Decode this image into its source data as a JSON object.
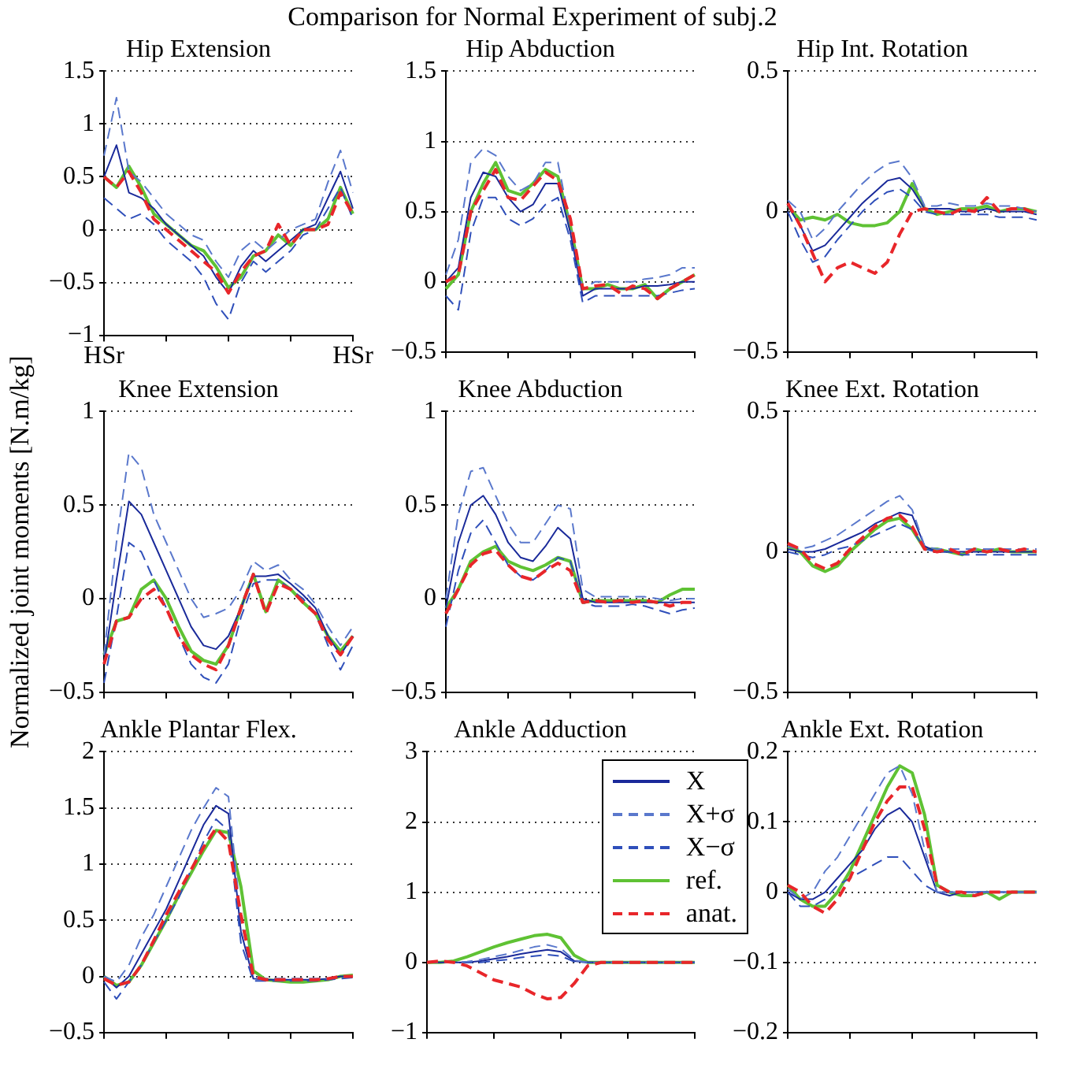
{
  "chart_data": [
    {
      "type": "line",
      "title": "Hip Extension",
      "annotations": [
        "Comparison for Normal Experiment of subj.2"
      ],
      "categories": [
        "HSr",
        null,
        null,
        null,
        null,
        null,
        null,
        null,
        null,
        null,
        null,
        null,
        null,
        null,
        null,
        null,
        null,
        null,
        null,
        null,
        "HSr"
      ],
      "ylim": [
        -1,
        1.5
      ],
      "yticks": [
        -1,
        -0.5,
        0,
        0.5,
        1,
        1.5
      ],
      "grid": "y",
      "series": [
        {
          "color": "#1a2a9a",
          "line_style": "solid",
          "values": [
            0.5,
            0.8,
            0.35,
            0.3,
            0.2,
            0.05,
            -0.05,
            -0.15,
            -0.25,
            -0.45,
            -0.6,
            -0.35,
            -0.2,
            -0.3,
            -0.2,
            -0.1,
            0,
            0.05,
            0.3,
            0.55,
            0.2
          ]
        },
        {
          "color": "#5a78cc",
          "line_style": "dashed",
          "values": [
            0.7,
            1.25,
            0.55,
            0.45,
            0.3,
            0.15,
            0.05,
            -0.05,
            -0.1,
            -0.3,
            -0.45,
            -0.2,
            -0.1,
            -0.2,
            -0.1,
            0,
            0.05,
            0.1,
            0.45,
            0.75,
            0.35
          ]
        },
        {
          "color": "#2f4fba",
          "line_style": "dashed",
          "values": [
            0.3,
            0.2,
            0.1,
            0.15,
            0.05,
            -0.1,
            -0.2,
            -0.3,
            -0.45,
            -0.7,
            -0.85,
            -0.5,
            -0.3,
            -0.4,
            -0.3,
            -0.2,
            -0.05,
            0,
            0.2,
            0.4,
            0.1
          ]
        },
        {
          "color": "#5fc234",
          "line_style": "solid",
          "values": [
            0.5,
            0.4,
            0.6,
            0.4,
            0.15,
            0.05,
            -0.05,
            -0.15,
            -0.2,
            -0.35,
            -0.55,
            -0.45,
            -0.25,
            -0.2,
            -0.05,
            -0.15,
            0,
            0,
            0.1,
            0.4,
            0.15
          ]
        },
        {
          "color": "#e8262a",
          "line_style": "dashed",
          "values": [
            0.5,
            0.4,
            0.55,
            0.35,
            0.1,
            0,
            -0.1,
            -0.2,
            -0.3,
            -0.4,
            -0.6,
            -0.4,
            -0.25,
            -0.2,
            0.05,
            -0.15,
            0,
            0,
            0.05,
            0.35,
            0.15
          ]
        }
      ]
    },
    {
      "type": "line",
      "title": "Hip Abduction",
      "categories": [
        null,
        null,
        null,
        null,
        null,
        null,
        null,
        null,
        null,
        null,
        null,
        null,
        null,
        null,
        null,
        null,
        null,
        null,
        null,
        null,
        null
      ],
      "ylim": [
        -0.5,
        1.5
      ],
      "yticks": [
        -0.5,
        0,
        0.5,
        1,
        1.5
      ],
      "grid": "y",
      "tick_labels": "y",
      "series": [
        {
          "color": "#1a2a9a",
          "line_style": "solid",
          "values": [
            0,
            0.1,
            0.6,
            0.78,
            0.75,
            0.6,
            0.5,
            0.55,
            0.7,
            0.7,
            0.35,
            -0.1,
            -0.05,
            -0.05,
            -0.05,
            -0.05,
            -0.03,
            -0.03,
            -0.02,
            0,
            0
          ]
        },
        {
          "color": "#5a78cc",
          "line_style": "dashed",
          "values": [
            0.05,
            0.3,
            0.85,
            0.95,
            0.9,
            0.75,
            0.65,
            0.7,
            0.85,
            0.85,
            0.4,
            -0.05,
            0,
            0,
            0,
            0,
            0.02,
            0.03,
            0.05,
            0.1,
            0.1
          ]
        },
        {
          "color": "#2f4fba",
          "line_style": "dashed",
          "values": [
            -0.1,
            -0.2,
            0.35,
            0.6,
            0.6,
            0.45,
            0.4,
            0.45,
            0.55,
            0.6,
            0.3,
            -0.15,
            -0.1,
            -0.1,
            -0.1,
            -0.1,
            -0.1,
            -0.1,
            -0.08,
            -0.06,
            -0.05
          ]
        },
        {
          "color": "#5fc234",
          "line_style": "solid",
          "values": [
            -0.05,
            0.05,
            0.5,
            0.7,
            0.85,
            0.65,
            0.62,
            0.7,
            0.8,
            0.75,
            0.4,
            -0.05,
            -0.05,
            -0.02,
            -0.05,
            -0.05,
            -0.02,
            -0.12,
            -0.05,
            0,
            0.05
          ]
        },
        {
          "color": "#e8262a",
          "line_style": "dashed",
          "values": [
            0,
            0.05,
            0.5,
            0.65,
            0.8,
            0.6,
            0.58,
            0.68,
            0.78,
            0.72,
            0.45,
            -0.05,
            -0.03,
            -0.02,
            -0.08,
            -0.03,
            -0.05,
            -0.12,
            -0.05,
            0,
            0.05
          ]
        }
      ]
    },
    {
      "type": "line",
      "title": "Hip Int. Rotation",
      "categories": [
        null,
        null,
        null,
        null,
        null,
        null,
        null,
        null,
        null,
        null,
        null,
        null,
        null,
        null,
        null,
        null,
        null,
        null,
        null,
        null,
        null
      ],
      "ylim": [
        -0.5,
        0.5
      ],
      "yticks": [
        -0.5,
        0,
        0.5
      ],
      "grid": "y",
      "tick_labels": "y",
      "series": [
        {
          "color": "#1a2a9a",
          "line_style": "solid",
          "values": [
            0.02,
            -0.05,
            -0.14,
            -0.12,
            -0.07,
            -0.02,
            0.03,
            0.07,
            0.11,
            0.12,
            0.08,
            0.01,
            0.01,
            0.01,
            0,
            0,
            0.01,
            0,
            0,
            0,
            -0.01
          ]
        },
        {
          "color": "#5a78cc",
          "line_style": "dashed",
          "values": [
            0.04,
            0,
            -0.1,
            -0.06,
            0,
            0.05,
            0.1,
            0.14,
            0.17,
            0.18,
            0.12,
            0.02,
            0.02,
            0.03,
            0.02,
            0.02,
            0.03,
            0.02,
            0.02,
            0.01,
            0
          ]
        },
        {
          "color": "#2f4fba",
          "line_style": "dashed",
          "values": [
            0,
            -0.1,
            -0.18,
            -0.16,
            -0.1,
            -0.05,
            0,
            0.04,
            0.07,
            0.08,
            0.05,
            0,
            -0.01,
            -0.01,
            -0.01,
            -0.01,
            -0.01,
            -0.02,
            -0.02,
            -0.02,
            -0.03
          ]
        },
        {
          "color": "#5fc234",
          "line_style": "solid",
          "values": [
            0.02,
            -0.03,
            -0.02,
            -0.03,
            -0.01,
            -0.04,
            -0.05,
            -0.05,
            -0.04,
            0,
            0.1,
            0.01,
            -0.01,
            0,
            0.01,
            0.01,
            0.02,
            0,
            0.01,
            0.01,
            0
          ]
        },
        {
          "color": "#e8262a",
          "line_style": "dashed",
          "values": [
            0.03,
            -0.05,
            -0.15,
            -0.25,
            -0.2,
            -0.18,
            -0.2,
            -0.22,
            -0.18,
            -0.08,
            0,
            0.01,
            0,
            -0.01,
            0.01,
            0,
            0.05,
            0,
            0.01,
            0.01,
            -0.01
          ]
        }
      ]
    },
    {
      "type": "line",
      "title": "Knee Extension",
      "ylabel": "Normalized joint moments [N.m/kg]",
      "categories": [
        null,
        null,
        null,
        null,
        null,
        null,
        null,
        null,
        null,
        null,
        null,
        null,
        null,
        null,
        null,
        null,
        null,
        null,
        null,
        null,
        null
      ],
      "ylim": [
        -0.5,
        1
      ],
      "yticks": [
        -0.5,
        0,
        0.5,
        1
      ],
      "grid": "y",
      "tick_labels": "y",
      "series": [
        {
          "color": "#1a2a9a",
          "line_style": "solid",
          "values": [
            -0.35,
            0.1,
            0.52,
            0.45,
            0.3,
            0.15,
            0,
            -0.15,
            -0.25,
            -0.27,
            -0.2,
            -0.05,
            0.12,
            0.12,
            0.13,
            0.08,
            0.02,
            -0.05,
            -0.2,
            -0.3,
            -0.2
          ]
        },
        {
          "color": "#5a78cc",
          "line_style": "dashed",
          "values": [
            -0.3,
            0.3,
            0.78,
            0.7,
            0.45,
            0.3,
            0.15,
            0,
            -0.1,
            -0.08,
            -0.05,
            0.05,
            0.2,
            0.15,
            0.18,
            0.1,
            0.05,
            -0.03,
            -0.15,
            -0.25,
            -0.15
          ]
        },
        {
          "color": "#2f4fba",
          "line_style": "dashed",
          "values": [
            -0.45,
            -0.1,
            0.3,
            0.25,
            0.1,
            -0.05,
            -0.2,
            -0.35,
            -0.42,
            -0.45,
            -0.35,
            -0.1,
            0.08,
            0.1,
            0.1,
            0.05,
            0,
            -0.08,
            -0.25,
            -0.38,
            -0.25
          ]
        },
        {
          "color": "#5fc234",
          "line_style": "solid",
          "values": [
            -0.3,
            -0.12,
            -0.1,
            0.05,
            0.1,
            0,
            -0.15,
            -0.28,
            -0.33,
            -0.35,
            -0.25,
            -0.05,
            0.13,
            -0.07,
            0.1,
            0.05,
            -0.02,
            -0.08,
            -0.2,
            -0.28,
            -0.2
          ]
        },
        {
          "color": "#e8262a",
          "line_style": "dashed",
          "values": [
            -0.35,
            -0.12,
            -0.1,
            0,
            0.05,
            -0.05,
            -0.2,
            -0.3,
            -0.35,
            -0.38,
            -0.25,
            -0.05,
            0.13,
            -0.08,
            0.08,
            0.05,
            -0.02,
            -0.08,
            -0.22,
            -0.3,
            -0.2
          ]
        }
      ]
    },
    {
      "type": "line",
      "title": "Knee Abduction",
      "categories": [
        null,
        null,
        null,
        null,
        null,
        null,
        null,
        null,
        null,
        null,
        null,
        null,
        null,
        null,
        null,
        null,
        null,
        null,
        null,
        null,
        null
      ],
      "ylim": [
        -0.5,
        1
      ],
      "yticks": [
        -0.5,
        0,
        0.5,
        1
      ],
      "grid": "y",
      "tick_labels": "y",
      "series": [
        {
          "color": "#1a2a9a",
          "line_style": "solid",
          "values": [
            -0.05,
            0.3,
            0.5,
            0.55,
            0.45,
            0.3,
            0.22,
            0.2,
            0.28,
            0.38,
            0.32,
            0,
            -0.02,
            -0.02,
            -0.02,
            -0.02,
            -0.02,
            -0.02,
            -0.02,
            -0.02,
            -0.02
          ]
        },
        {
          "color": "#5a78cc",
          "line_style": "dashed",
          "values": [
            0,
            0.45,
            0.68,
            0.7,
            0.55,
            0.4,
            0.3,
            0.3,
            0.4,
            0.5,
            0.48,
            0.05,
            0.01,
            0.01,
            0.01,
            0.01,
            0.01,
            0,
            -0.01,
            0,
            0
          ]
        },
        {
          "color": "#2f4fba",
          "line_style": "dashed",
          "values": [
            -0.15,
            0.15,
            0.35,
            0.42,
            0.3,
            0.18,
            0.12,
            0.1,
            0.15,
            0.22,
            0.2,
            -0.02,
            -0.04,
            -0.04,
            -0.04,
            -0.03,
            -0.04,
            -0.06,
            -0.08,
            -0.06,
            -0.05
          ]
        },
        {
          "color": "#5fc234",
          "line_style": "solid",
          "values": [
            -0.05,
            0.05,
            0.2,
            0.25,
            0.28,
            0.2,
            0.17,
            0.15,
            0.18,
            0.22,
            0.2,
            -0.02,
            -0.01,
            -0.01,
            -0.01,
            -0.01,
            -0.01,
            -0.02,
            0.02,
            0.05,
            0.05
          ]
        },
        {
          "color": "#e8262a",
          "line_style": "dashed",
          "values": [
            -0.08,
            0.05,
            0.18,
            0.24,
            0.26,
            0.18,
            0.12,
            0.1,
            0.15,
            0.19,
            0.15,
            -0.02,
            -0.01,
            -0.02,
            -0.01,
            -0.02,
            -0.01,
            -0.02,
            -0.04,
            -0.02,
            -0.02
          ]
        }
      ]
    },
    {
      "type": "line",
      "title": "Knee Ext. Rotation",
      "categories": [
        null,
        null,
        null,
        null,
        null,
        null,
        null,
        null,
        null,
        null,
        null,
        null,
        null,
        null,
        null,
        null,
        null,
        null,
        null,
        null,
        null
      ],
      "ylim": [
        -0.5,
        0.5
      ],
      "yticks": [
        -0.5,
        0,
        0.5
      ],
      "grid": "y",
      "tick_labels": "y",
      "series": [
        {
          "color": "#1a2a9a",
          "line_style": "solid",
          "values": [
            0.01,
            0,
            0,
            0.01,
            0.03,
            0.05,
            0.07,
            0.1,
            0.12,
            0.14,
            0.13,
            0.02,
            0,
            0,
            0,
            0,
            0,
            0,
            0,
            0,
            0
          ]
        },
        {
          "color": "#5a78cc",
          "line_style": "dashed",
          "values": [
            0.02,
            0.01,
            0.02,
            0.04,
            0.06,
            0.09,
            0.12,
            0.15,
            0.18,
            0.2,
            0.15,
            0.02,
            0.01,
            0.01,
            0.01,
            0.01,
            0.01,
            0.01,
            0.01,
            0.01,
            0.01
          ]
        },
        {
          "color": "#2f4fba",
          "line_style": "dashed",
          "values": [
            0,
            -0.01,
            -0.02,
            -0.01,
            0.01,
            0.02,
            0.04,
            0.06,
            0.08,
            0.1,
            0.08,
            0.01,
            0,
            0,
            -0.01,
            -0.01,
            -0.01,
            -0.01,
            -0.01,
            -0.01,
            -0.01
          ]
        },
        {
          "color": "#5fc234",
          "line_style": "solid",
          "values": [
            0.02,
            0,
            -0.05,
            -0.07,
            -0.05,
            0,
            0.04,
            0.08,
            0.11,
            0.12,
            0.08,
            0.01,
            0.01,
            0,
            -0.01,
            0.01,
            0,
            0.01,
            0,
            0,
            0
          ]
        },
        {
          "color": "#e8262a",
          "line_style": "dashed",
          "values": [
            0.03,
            0.01,
            -0.04,
            -0.06,
            -0.04,
            0.01,
            0.05,
            0.09,
            0.12,
            0.13,
            0.09,
            0.01,
            0,
            0.01,
            -0.01,
            0.01,
            0,
            0.01,
            0,
            0.01,
            0
          ]
        }
      ]
    },
    {
      "type": "line",
      "title": "Ankle Plantar Flex.",
      "categories": [
        null,
        null,
        null,
        null,
        null,
        null,
        null,
        null,
        null,
        null,
        null,
        null,
        null,
        null,
        null,
        null,
        null,
        null,
        null,
        null,
        null
      ],
      "ylim": [
        -0.5,
        2
      ],
      "yticks": [
        -0.5,
        0,
        0.5,
        1,
        1.5,
        2
      ],
      "grid": "y",
      "tick_labels": "y",
      "series": [
        {
          "color": "#1a2a9a",
          "line_style": "solid",
          "values": [
            0,
            -0.1,
            0,
            0.2,
            0.4,
            0.6,
            0.85,
            1.1,
            1.35,
            1.52,
            1.45,
            0.4,
            -0.02,
            -0.03,
            -0.03,
            -0.03,
            -0.03,
            -0.03,
            -0.02,
            0,
            0
          ]
        },
        {
          "color": "#5a78cc",
          "line_style": "dashed",
          "values": [
            0,
            -0.05,
            0.1,
            0.35,
            0.55,
            0.8,
            1.05,
            1.3,
            1.5,
            1.68,
            1.6,
            0.5,
            0,
            -0.02,
            -0.02,
            -0.02,
            -0.02,
            -0.02,
            -0.02,
            -0.01,
            0
          ]
        },
        {
          "color": "#2f4fba",
          "line_style": "dashed",
          "values": [
            -0.05,
            -0.2,
            -0.05,
            0.1,
            0.3,
            0.5,
            0.7,
            0.95,
            1.2,
            1.4,
            1.3,
            0.3,
            -0.04,
            -0.04,
            -0.04,
            -0.04,
            -0.04,
            -0.04,
            -0.03,
            -0.02,
            -0.01
          ]
        },
        {
          "color": "#5fc234",
          "line_style": "solid",
          "values": [
            0,
            -0.08,
            -0.05,
            0.1,
            0.3,
            0.5,
            0.72,
            0.92,
            1.12,
            1.3,
            1.28,
            0.8,
            0.05,
            -0.03,
            -0.04,
            -0.05,
            -0.05,
            -0.04,
            -0.03,
            0,
            0.01
          ]
        },
        {
          "color": "#e8262a",
          "line_style": "dashed",
          "values": [
            -0.02,
            -0.08,
            -0.05,
            0.1,
            0.32,
            0.55,
            0.75,
            0.95,
            1.15,
            1.32,
            1.2,
            0.55,
            0,
            -0.03,
            -0.03,
            -0.03,
            -0.03,
            -0.03,
            -0.02,
            0,
            0
          ]
        }
      ]
    },
    {
      "type": "line",
      "title": "Ankle Adduction",
      "categories": [
        null,
        null,
        null,
        null,
        null,
        null,
        null,
        null,
        null,
        null,
        null,
        null,
        null,
        null,
        null,
        null,
        null,
        null,
        null,
        null,
        null
      ],
      "ylim": [
        -1,
        3
      ],
      "yticks": [
        -1,
        0,
        1,
        2,
        3
      ],
      "grid": "y",
      "tick_labels": "y",
      "legend": "top right",
      "series": [
        {
          "name": "X",
          "color": "#1a2a9a",
          "line_style": "solid",
          "values": [
            0,
            0,
            0,
            0,
            0.02,
            0.05,
            0.08,
            0.12,
            0.15,
            0.18,
            0.15,
            0.02,
            0,
            0,
            0,
            0,
            0,
            0,
            0,
            0,
            0
          ]
        },
        {
          "name": "X+σ",
          "color": "#5a78cc",
          "line_style": "dashed",
          "values": [
            0,
            0,
            0,
            0.01,
            0.04,
            0.08,
            0.12,
            0.17,
            0.22,
            0.25,
            0.2,
            0.03,
            0,
            0,
            0,
            0,
            0,
            0,
            0,
            0,
            0
          ]
        },
        {
          "name": "X−σ",
          "color": "#2f4fba",
          "line_style": "dashed",
          "values": [
            0,
            0,
            0,
            0,
            0,
            0.02,
            0.04,
            0.07,
            0.09,
            0.11,
            0.09,
            0.01,
            0,
            0,
            0,
            0,
            0,
            0,
            0,
            0,
            0
          ]
        },
        {
          "name": "ref.",
          "color": "#5fc234",
          "line_style": "solid",
          "values": [
            0,
            0,
            0.02,
            0.08,
            0.15,
            0.22,
            0.28,
            0.33,
            0.38,
            0.4,
            0.35,
            0.1,
            0,
            0,
            0,
            0,
            0,
            0,
            0,
            0,
            0
          ]
        },
        {
          "name": "anat.",
          "color": "#e8262a",
          "line_style": "dashed",
          "values": [
            0,
            0.02,
            0,
            -0.05,
            -0.15,
            -0.25,
            -0.3,
            -0.35,
            -0.45,
            -0.52,
            -0.5,
            -0.3,
            -0.05,
            0,
            0,
            0,
            0,
            0,
            0,
            0,
            0
          ]
        }
      ]
    },
    {
      "type": "line",
      "title": "Ankle Ext. Rotation",
      "categories": [
        null,
        null,
        null,
        null,
        null,
        null,
        null,
        null,
        null,
        null,
        null,
        null,
        null,
        null,
        null,
        null,
        null,
        null,
        null,
        null,
        null
      ],
      "ylim": [
        -0.2,
        0.2
      ],
      "yticks": [
        -0.2,
        -0.1,
        0,
        0.1,
        0.2
      ],
      "grid": "y",
      "tick_labels": "y",
      "series": [
        {
          "color": "#1a2a9a",
          "line_style": "solid",
          "values": [
            0,
            -0.01,
            -0.01,
            0,
            0.02,
            0.04,
            0.06,
            0.09,
            0.11,
            0.12,
            0.1,
            0.05,
            0,
            -0.005,
            0,
            0,
            0,
            0,
            0,
            0,
            0
          ]
        },
        {
          "color": "#5a78cc",
          "line_style": "dashed",
          "values": [
            0.005,
            -0.01,
            0,
            0.03,
            0.05,
            0.08,
            0.11,
            0.14,
            0.17,
            0.18,
            0.14,
            0.06,
            0,
            0,
            0,
            0,
            0,
            0,
            0,
            0,
            0
          ]
        },
        {
          "color": "#2f4fba",
          "line_style": "dashed",
          "values": [
            0,
            -0.02,
            -0.02,
            -0.01,
            0.01,
            0.02,
            0.03,
            0.04,
            0.05,
            0.05,
            0.03,
            0.01,
            0,
            0,
            0,
            0,
            0,
            0,
            0,
            0,
            0
          ]
        },
        {
          "color": "#5fc234",
          "line_style": "solid",
          "values": [
            0.01,
            -0.01,
            -0.02,
            -0.02,
            0,
            0.03,
            0.07,
            0.11,
            0.15,
            0.18,
            0.17,
            0.11,
            0.01,
            0,
            -0.005,
            -0.005,
            0,
            -0.01,
            0,
            0,
            0
          ]
        },
        {
          "color": "#e8262a",
          "line_style": "dashed",
          "values": [
            0.01,
            0,
            -0.02,
            -0.03,
            -0.01,
            0.02,
            0.06,
            0.1,
            0.13,
            0.15,
            0.15,
            0.09,
            0.01,
            0,
            0,
            -0.005,
            0,
            0,
            0,
            0,
            0
          ]
        }
      ]
    }
  ]
}
